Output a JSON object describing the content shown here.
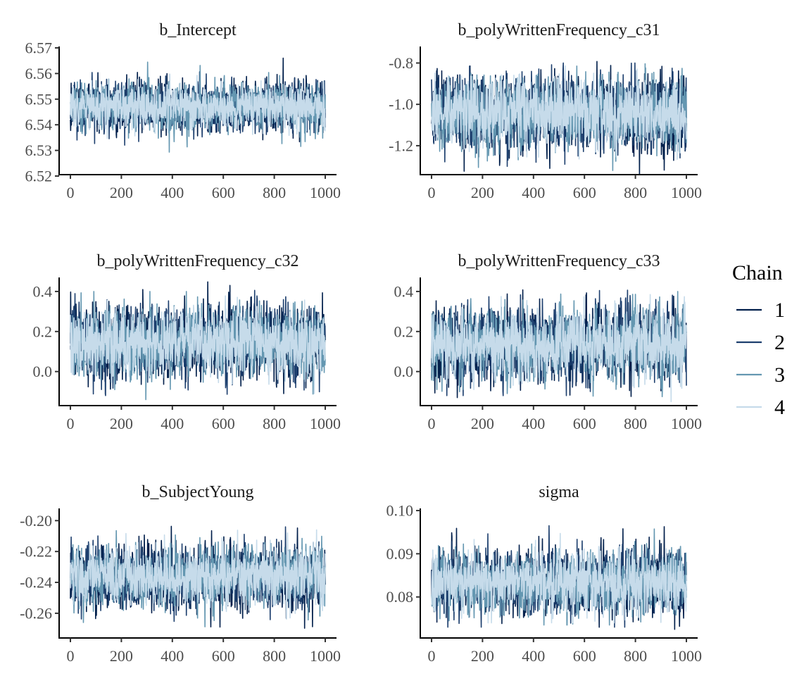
{
  "legend": {
    "title": "Chain",
    "items": [
      {
        "label": "1",
        "color": "#011f4b"
      },
      {
        "label": "2",
        "color": "#1d3f6e"
      },
      {
        "label": "3",
        "color": "#6497b1"
      },
      {
        "label": "4",
        "color": "#c6dbea"
      }
    ]
  },
  "chart_data": [
    {
      "type": "line",
      "title": "b_Intercept",
      "xlabel": "",
      "ylabel": "",
      "xlim": [
        0,
        1000
      ],
      "ylim": [
        6.52,
        6.57
      ],
      "x_ticks": [
        0,
        200,
        400,
        600,
        800,
        1000
      ],
      "x_tick_labels": [
        "0",
        "200",
        "400",
        "600",
        "800",
        "1000"
      ],
      "y_ticks": [
        6.52,
        6.53,
        6.54,
        6.55,
        6.56,
        6.57
      ],
      "y_tick_labels": [
        "6.52",
        "6.53",
        "6.54",
        "6.55",
        "6.56",
        "6.57"
      ],
      "draws": 1000,
      "series": [
        {
          "chain": "1",
          "mean": 6.547,
          "sd": 0.0048,
          "min": 6.522,
          "max": 6.566
        },
        {
          "chain": "2",
          "mean": 6.547,
          "sd": 0.0046,
          "min": 6.53,
          "max": 6.564
        },
        {
          "chain": "3",
          "mean": 6.547,
          "sd": 0.0045,
          "min": 6.527,
          "max": 6.565
        },
        {
          "chain": "4",
          "mean": 6.547,
          "sd": 0.004,
          "min": 6.533,
          "max": 6.569
        }
      ]
    },
    {
      "type": "line",
      "title": "b_polyWrittenFrequency_c31",
      "xlabel": "",
      "ylabel": "",
      "xlim": [
        0,
        1000
      ],
      "ylim": [
        -1.34,
        -0.72
      ],
      "x_ticks": [
        0,
        200,
        400,
        600,
        800,
        1000
      ],
      "x_tick_labels": [
        "0",
        "200",
        "400",
        "600",
        "800",
        "1000"
      ],
      "y_ticks": [
        -1.2,
        -1.0,
        -0.8
      ],
      "y_tick_labels": [
        "-1.2",
        "-1.0",
        "-0.8"
      ],
      "draws": 1000,
      "series": [
        {
          "chain": "1",
          "mean": -1.04,
          "sd": 0.09,
          "min": -1.34,
          "max": -0.78
        },
        {
          "chain": "2",
          "mean": -1.04,
          "sd": 0.09,
          "min": -1.3,
          "max": -0.8
        },
        {
          "chain": "3",
          "mean": -1.04,
          "sd": 0.085,
          "min": -1.32,
          "max": -0.8
        },
        {
          "chain": "4",
          "mean": -1.04,
          "sd": 0.08,
          "min": -1.31,
          "max": -0.73
        }
      ]
    },
    {
      "type": "line",
      "title": "b_polyWrittenFrequency_c32",
      "xlabel": "",
      "ylabel": "",
      "xlim": [
        0,
        1000
      ],
      "ylim": [
        -0.17,
        0.47
      ],
      "x_ticks": [
        0,
        200,
        400,
        600,
        800,
        1000
      ],
      "x_tick_labels": [
        "0",
        "200",
        "400",
        "600",
        "800",
        "1000"
      ],
      "y_ticks": [
        0.0,
        0.2,
        0.4
      ],
      "y_tick_labels": [
        "0.0",
        "0.2",
        "0.4"
      ],
      "draws": 1000,
      "series": [
        {
          "chain": "1",
          "mean": 0.15,
          "sd": 0.09,
          "min": -0.16,
          "max": 0.45
        },
        {
          "chain": "2",
          "mean": 0.15,
          "sd": 0.09,
          "min": -0.12,
          "max": 0.43
        },
        {
          "chain": "3",
          "mean": 0.15,
          "sd": 0.085,
          "min": -0.14,
          "max": 0.4
        },
        {
          "chain": "4",
          "mean": 0.15,
          "sd": 0.08,
          "min": -0.15,
          "max": 0.41
        }
      ]
    },
    {
      "type": "line",
      "title": "b_polyWrittenFrequency_c33",
      "xlabel": "",
      "ylabel": "",
      "xlim": [
        0,
        1000
      ],
      "ylim": [
        -0.17,
        0.47
      ],
      "x_ticks": [
        0,
        200,
        400,
        600,
        800,
        1000
      ],
      "x_tick_labels": [
        "0",
        "200",
        "400",
        "600",
        "800",
        "1000"
      ],
      "y_ticks": [
        0.0,
        0.2,
        0.4
      ],
      "y_tick_labels": [
        "0.0",
        "0.2",
        "0.4"
      ],
      "draws": 1000,
      "series": [
        {
          "chain": "1",
          "mean": 0.14,
          "sd": 0.09,
          "min": -0.13,
          "max": 0.45
        },
        {
          "chain": "2",
          "mean": 0.14,
          "sd": 0.09,
          "min": -0.12,
          "max": 0.42
        },
        {
          "chain": "3",
          "mean": 0.14,
          "sd": 0.085,
          "min": -0.14,
          "max": 0.4
        },
        {
          "chain": "4",
          "mean": 0.14,
          "sd": 0.08,
          "min": -0.15,
          "max": 0.4
        }
      ]
    },
    {
      "type": "line",
      "title": "b_SubjectYoung",
      "xlabel": "",
      "ylabel": "",
      "xlim": [
        0,
        1000
      ],
      "ylim": [
        -0.276,
        -0.193
      ],
      "x_ticks": [
        0,
        200,
        400,
        600,
        800,
        1000
      ],
      "x_tick_labels": [
        "0",
        "200",
        "400",
        "600",
        "800",
        "1000"
      ],
      "y_ticks": [
        -0.26,
        -0.24,
        -0.22,
        -0.2
      ],
      "y_tick_labels": [
        "-0.26",
        "-0.24",
        "-0.22",
        "-0.20"
      ],
      "draws": 1000,
      "series": [
        {
          "chain": "1",
          "mean": -0.236,
          "sd": 0.0105,
          "min": -0.273,
          "max": -0.196
        },
        {
          "chain": "2",
          "mean": -0.236,
          "sd": 0.01,
          "min": -0.27,
          "max": -0.204
        },
        {
          "chain": "3",
          "mean": -0.236,
          "sd": 0.0095,
          "min": -0.27,
          "max": -0.205
        },
        {
          "chain": "4",
          "mean": -0.236,
          "sd": 0.009,
          "min": -0.274,
          "max": -0.206
        }
      ]
    },
    {
      "type": "line",
      "title": "sigma",
      "xlabel": "",
      "ylabel": "",
      "xlim": [
        0,
        1000
      ],
      "ylim": [
        0.0705,
        0.1005
      ],
      "x_ticks": [
        0,
        200,
        400,
        600,
        800,
        1000
      ],
      "x_tick_labels": [
        "0",
        "200",
        "400",
        "600",
        "800",
        "1000"
      ],
      "y_ticks": [
        0.08,
        0.09,
        0.1
      ],
      "y_tick_labels": [
        "0.08",
        "0.09",
        "0.10"
      ],
      "draws": 1000,
      "series": [
        {
          "chain": "1",
          "mean": 0.0835,
          "sd": 0.0038,
          "min": 0.0725,
          "max": 0.099
        },
        {
          "chain": "2",
          "mean": 0.0835,
          "sd": 0.0037,
          "min": 0.073,
          "max": 0.0985
        },
        {
          "chain": "3",
          "mean": 0.0835,
          "sd": 0.0036,
          "min": 0.0735,
          "max": 0.096
        },
        {
          "chain": "4",
          "mean": 0.0835,
          "sd": 0.0033,
          "min": 0.074,
          "max": 0.097
        }
      ]
    }
  ]
}
